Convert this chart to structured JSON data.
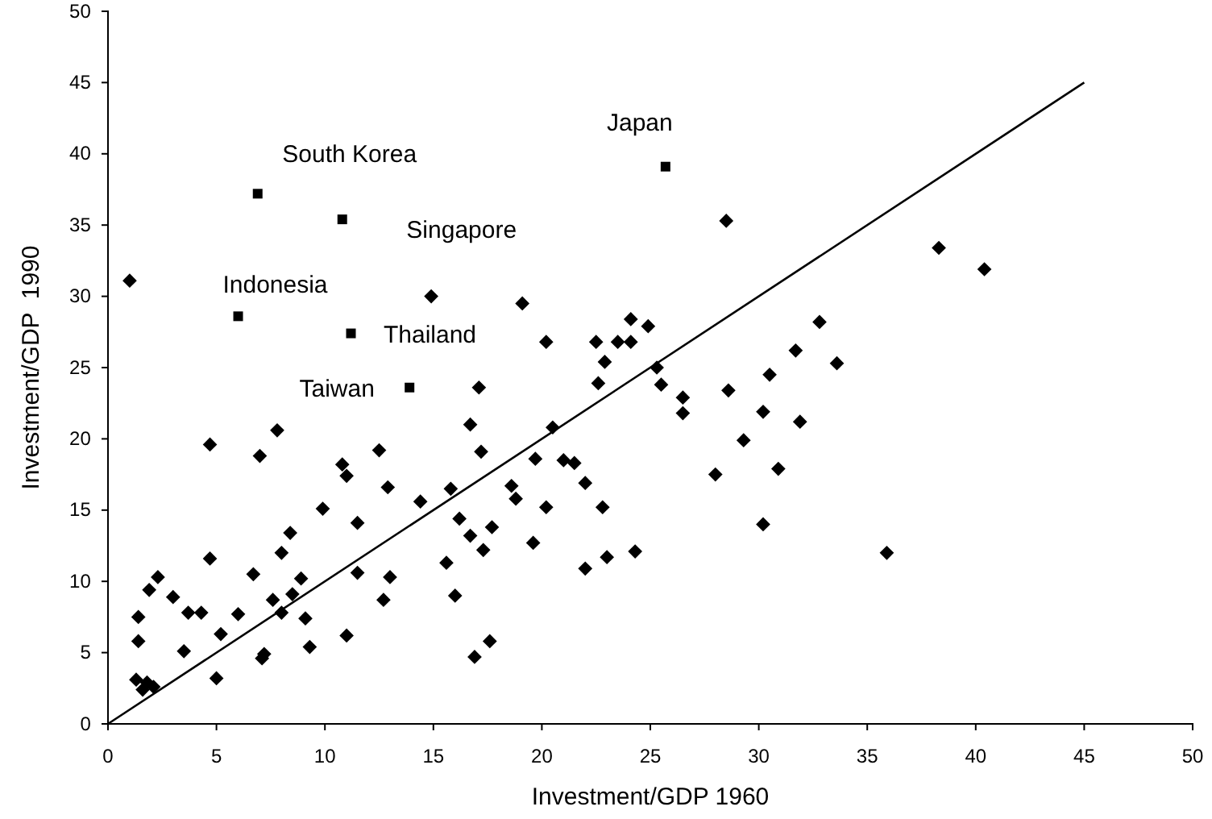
{
  "chart_data": {
    "type": "scatter",
    "xlabel": "Investment/GDP 1960",
    "ylabel": "Investment/GDP  1990",
    "xlim": [
      0,
      50
    ],
    "ylim": [
      0,
      50
    ],
    "xticks": [
      0,
      5,
      10,
      15,
      20,
      25,
      30,
      35,
      40,
      45,
      50
    ],
    "yticks": [
      0,
      5,
      10,
      15,
      20,
      25,
      30,
      35,
      40,
      45,
      50
    ],
    "grid": false,
    "series": [
      {
        "marker": "diamond",
        "color": "#000000",
        "x": [
          1.0,
          28.5,
          14.9,
          4.7,
          7.0,
          7.8,
          10.8,
          11.0,
          12.5,
          12.9,
          14.4,
          15.8,
          16.2,
          9.9,
          11.5,
          8.4,
          4.7,
          8.0,
          6.7,
          11.5,
          15.6,
          16.0,
          13.0,
          8.9,
          8.5,
          7.6,
          12.7,
          8.0,
          6.0,
          4.3,
          3.7,
          3.0,
          1.9,
          2.3,
          1.4,
          1.4,
          9.1,
          5.2,
          3.5,
          9.3,
          7.2,
          7.1,
          11.0,
          1.3,
          1.6,
          1.8,
          2.1,
          5.0,
          19.1,
          20.2,
          22.5,
          22.9,
          23.5,
          24.1,
          24.1,
          24.9,
          22.6,
          25.3,
          25.5,
          26.5,
          26.5,
          17.1,
          16.7,
          17.2,
          20.5,
          19.7,
          21.0,
          21.5,
          22.0,
          18.6,
          18.8,
          20.2,
          22.8,
          16.7,
          17.3,
          17.7,
          19.6,
          22.0,
          23.0,
          24.3,
          17.6,
          16.9,
          28.0,
          28.6,
          29.3,
          30.2,
          30.5,
          31.7,
          31.9,
          30.9,
          30.2,
          38.3,
          40.4,
          32.8,
          33.6,
          35.9
        ],
        "values": [
          31.1,
          35.3,
          30.0,
          19.6,
          18.8,
          20.6,
          18.2,
          17.4,
          19.2,
          16.6,
          15.6,
          16.5,
          14.4,
          15.1,
          14.1,
          13.4,
          11.6,
          12.0,
          10.5,
          10.6,
          11.3,
          9.0,
          10.3,
          10.2,
          9.1,
          8.7,
          8.7,
          7.8,
          7.7,
          7.8,
          7.8,
          8.9,
          9.4,
          10.3,
          7.5,
          5.8,
          7.4,
          6.3,
          5.1,
          5.4,
          4.9,
          4.6,
          6.2,
          3.1,
          2.4,
          2.9,
          2.6,
          3.2,
          29.5,
          26.8,
          26.8,
          25.4,
          26.8,
          28.4,
          26.8,
          27.9,
          23.9,
          25.0,
          23.8,
          22.9,
          21.8,
          23.6,
          21.0,
          19.1,
          20.8,
          18.6,
          18.5,
          18.3,
          16.9,
          16.7,
          15.8,
          15.2,
          15.2,
          13.2,
          12.2,
          13.8,
          12.7,
          10.9,
          11.7,
          12.1,
          5.8,
          4.7,
          17.5,
          23.4,
          19.9,
          21.9,
          24.5,
          26.2,
          21.2,
          17.9,
          14.0,
          33.4,
          31.9,
          28.2,
          25.3,
          12.0
        ]
      },
      {
        "marker": "square",
        "color": "#000000",
        "x": [
          6.9,
          10.8,
          25.7,
          6.0,
          11.2,
          13.9
        ],
        "values": [
          37.2,
          35.4,
          39.1,
          28.6,
          27.4,
          23.6
        ]
      },
      {
        "type": "line",
        "color": "#000000",
        "line_style": "solid",
        "marker": "none",
        "x": [
          0,
          45
        ],
        "values": [
          0,
          45
        ]
      }
    ],
    "annotations": [
      {
        "text": "South Korea",
        "x": 6.9,
        "y": 37.2
      },
      {
        "text": "Singapore",
        "x": 10.8,
        "y": 35.4
      },
      {
        "text": "Japan",
        "x": 25.7,
        "y": 39.1
      },
      {
        "text": "Indonesia",
        "x": 6.0,
        "y": 28.6
      },
      {
        "text": "Thailand",
        "x": 11.2,
        "y": 27.4
      },
      {
        "text": "Taiwan",
        "x": 13.9,
        "y": 23.6
      }
    ]
  }
}
